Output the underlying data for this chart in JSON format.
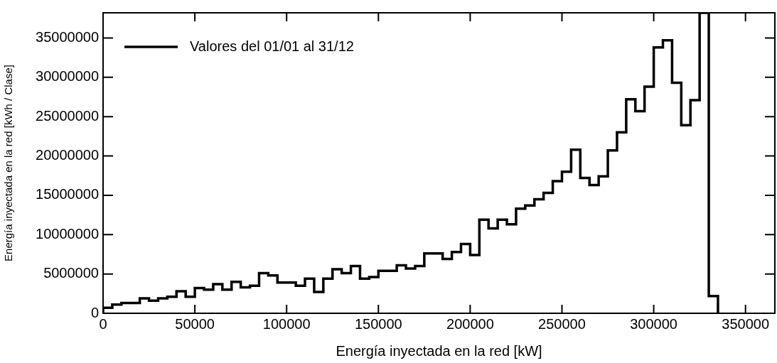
{
  "chart_data": {
    "type": "histogram",
    "xlabel": "Energía inyectada en la red [kW]",
    "ylabel": "Energía inyectada en la red [kWh / Clase]",
    "bins": [
      0,
      5000,
      10000,
      15000,
      20000,
      25000,
      30000,
      35000,
      40000,
      45000,
      50000,
      55000,
      60000,
      65000,
      70000,
      75000,
      80000,
      85000,
      90000,
      95000,
      100000,
      105000,
      110000,
      115000,
      120000,
      125000,
      130000,
      135000,
      140000,
      145000,
      150000,
      155000,
      160000,
      165000,
      170000,
      175000,
      180000,
      185000,
      190000,
      195000,
      200000,
      205000,
      210000,
      215000,
      220000,
      225000,
      230000,
      235000,
      240000,
      245000,
      250000,
      255000,
      260000,
      265000,
      270000,
      275000,
      280000,
      285000,
      290000,
      295000,
      300000,
      305000,
      310000,
      315000,
      320000,
      325000,
      330000,
      335000
    ],
    "series": [
      {
        "name": "Valores del 01/01 al 31/12",
        "color": "#000000",
        "values": [
          700000,
          1100000,
          1300000,
          1300000,
          1900000,
          1600000,
          1900000,
          2100000,
          2800000,
          2100000,
          3200000,
          3000000,
          3700000,
          3000000,
          4000000,
          3300000,
          3500000,
          5100000,
          4800000,
          3900000,
          3900000,
          3500000,
          4400000,
          2700000,
          4400000,
          5600000,
          5100000,
          6000000,
          4400000,
          4600000,
          5400000,
          5400000,
          6100000,
          5700000,
          6000000,
          7600000,
          7600000,
          6900000,
          7800000,
          8800000,
          7400000,
          11900000,
          10800000,
          11900000,
          11300000,
          13300000,
          13700000,
          14500000,
          15300000,
          16800000,
          18000000,
          20800000,
          17200000,
          16300000,
          17400000,
          20700000,
          23000000,
          27200000,
          25700000,
          28800000,
          33800000,
          34700000,
          29300000,
          23900000,
          27100000,
          38200000,
          2200000
        ]
      }
    ],
    "xlim": [
      0,
      366000
    ],
    "xticks": [
      0,
      50000,
      100000,
      150000,
      200000,
      250000,
      300000,
      350000
    ],
    "ylim": [
      0,
      38200000
    ],
    "yticks": [
      0,
      5000000,
      10000000,
      15000000,
      20000000,
      25000000,
      30000000,
      35000000
    ],
    "legend": "top left",
    "grid": false
  }
}
